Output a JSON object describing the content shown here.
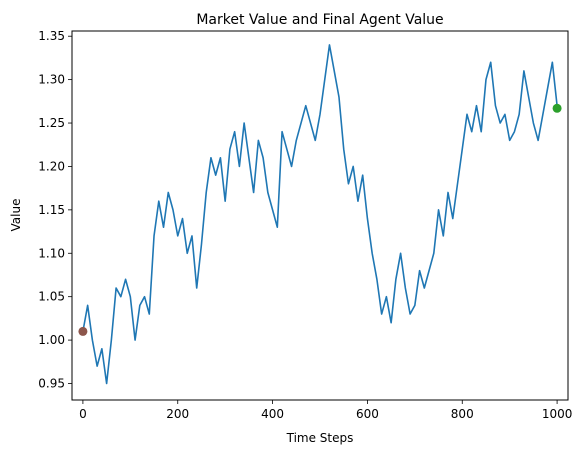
{
  "chart_data": {
    "type": "line",
    "title": "Market Value and Final Agent Value",
    "xlabel": "Time Steps",
    "ylabel": "Value",
    "xlim": [
      -23,
      1023
    ],
    "ylim": [
      0.931,
      1.356
    ],
    "grid": false,
    "xticks": [
      0,
      200,
      400,
      600,
      800,
      1000
    ],
    "yticks": [
      0.95,
      1.0,
      1.05,
      1.1,
      1.15,
      1.2,
      1.25,
      1.3,
      1.35
    ],
    "x_tick_labels": [
      "0",
      "200",
      "400",
      "600",
      "800",
      "1000"
    ],
    "y_tick_labels": [
      "0.95",
      "1.00",
      "1.05",
      "1.10",
      "1.15",
      "1.20",
      "1.25",
      "1.30",
      "1.35"
    ],
    "series": [
      {
        "color": "#1f77b4",
        "x": [
          0,
          10,
          20,
          30,
          40,
          50,
          60,
          70,
          80,
          90,
          100,
          110,
          120,
          130,
          140,
          150,
          160,
          170,
          180,
          190,
          200,
          210,
          220,
          230,
          240,
          250,
          260,
          270,
          280,
          290,
          300,
          310,
          320,
          330,
          340,
          350,
          360,
          370,
          380,
          390,
          400,
          410,
          420,
          430,
          440,
          450,
          460,
          470,
          480,
          490,
          500,
          510,
          520,
          530,
          540,
          550,
          560,
          570,
          580,
          590,
          600,
          610,
          620,
          630,
          640,
          650,
          660,
          670,
          680,
          690,
          700,
          710,
          720,
          730,
          740,
          750,
          760,
          770,
          780,
          790,
          800,
          810,
          820,
          830,
          840,
          850,
          860,
          870,
          880,
          890,
          900,
          910,
          920,
          930,
          940,
          950,
          960,
          970,
          980,
          990,
          1000
        ],
        "values": [
          1.01,
          1.04,
          1.0,
          0.97,
          0.99,
          0.95,
          1.0,
          1.06,
          1.05,
          1.07,
          1.05,
          1.0,
          1.04,
          1.05,
          1.03,
          1.12,
          1.16,
          1.13,
          1.17,
          1.15,
          1.12,
          1.14,
          1.1,
          1.12,
          1.06,
          1.11,
          1.17,
          1.21,
          1.19,
          1.21,
          1.16,
          1.22,
          1.24,
          1.2,
          1.25,
          1.21,
          1.17,
          1.23,
          1.21,
          1.17,
          1.15,
          1.13,
          1.24,
          1.22,
          1.2,
          1.23,
          1.25,
          1.27,
          1.25,
          1.23,
          1.26,
          1.3,
          1.34,
          1.31,
          1.28,
          1.22,
          1.18,
          1.2,
          1.16,
          1.19,
          1.14,
          1.1,
          1.07,
          1.03,
          1.05,
          1.02,
          1.07,
          1.1,
          1.06,
          1.03,
          1.04,
          1.08,
          1.06,
          1.08,
          1.1,
          1.15,
          1.12,
          1.17,
          1.14,
          1.18,
          1.22,
          1.26,
          1.24,
          1.27,
          1.24,
          1.3,
          1.32,
          1.27,
          1.25,
          1.26,
          1.23,
          1.24,
          1.26,
          1.31,
          1.28,
          1.25,
          1.23,
          1.26,
          1.29,
          1.32,
          1.27
        ]
      }
    ],
    "markers": [
      {
        "x": 0,
        "y": 1.01,
        "color": "#8c564b"
      },
      {
        "x": 1000,
        "y": 1.267,
        "color": "#2ca02c"
      }
    ]
  }
}
